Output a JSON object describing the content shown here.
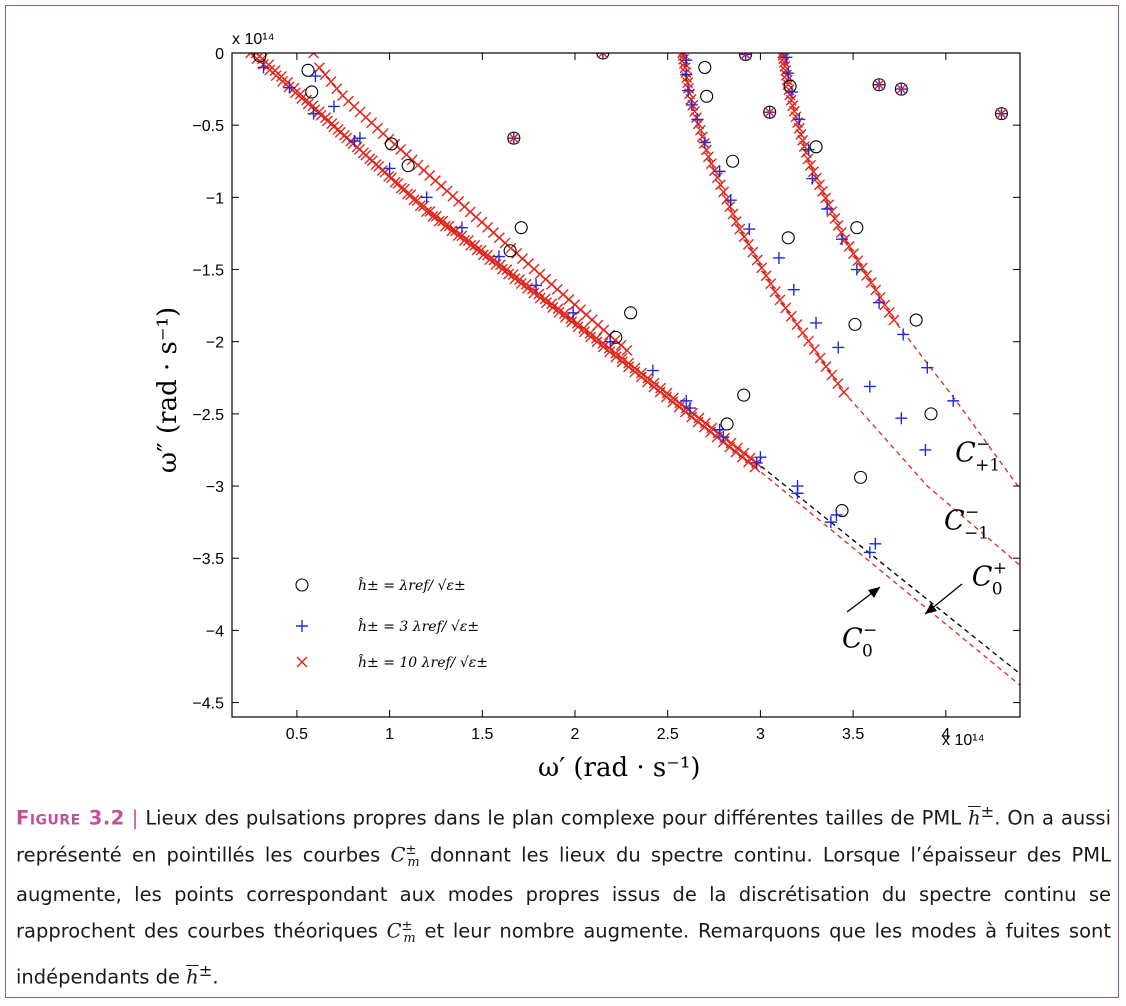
{
  "chart_data": {
    "type": "scatter",
    "xlabel": "ω′ (rad · s⁻¹)",
    "ylabel": "ω″ (rad · s⁻¹)",
    "x_multiplier": "x 10¹⁴",
    "y_multiplier": "x 10¹⁴",
    "xlim": [
      0.15,
      4.4
    ],
    "ylim": [
      -4.6,
      0
    ],
    "xticks": [
      0.5,
      1,
      1.5,
      2,
      2.5,
      3,
      3.5,
      4
    ],
    "xtick_labels": [
      "0.5",
      "1",
      "1.5",
      "2",
      "2.5",
      "3",
      "3.5",
      "4"
    ],
    "yticks": [
      0,
      -0.5,
      -1,
      -1.5,
      -2,
      -2.5,
      -3,
      -3.5,
      -4,
      -4.5
    ],
    "ytick_labels": [
      "0",
      "−0.5",
      "−1",
      "−1.5",
      "−2",
      "−2.5",
      "−3",
      "−3.5",
      "−4",
      "−4.5"
    ],
    "grid": false,
    "legend_position": "bottom-left",
    "series": [
      {
        "name": "ĥ± = λref/ √ε±",
        "marker": "circle",
        "color": "#000000",
        "points": [
          [
            0.3,
            -0.02
          ],
          [
            0.56,
            -0.12
          ],
          [
            0.58,
            -0.27
          ],
          [
            1.01,
            -0.63
          ],
          [
            1.1,
            -0.78
          ],
          [
            1.65,
            -1.37
          ],
          [
            1.71,
            -1.21
          ],
          [
            2.22,
            -1.97
          ],
          [
            2.3,
            -1.8
          ],
          [
            2.82,
            -2.57
          ],
          [
            2.91,
            -2.37
          ],
          [
            2.7,
            -0.1
          ],
          [
            2.71,
            -0.3
          ],
          [
            2.85,
            -0.75
          ],
          [
            3.15,
            -1.28
          ],
          [
            3.16,
            -0.23
          ],
          [
            3.3,
            -0.65
          ],
          [
            3.51,
            -1.88
          ],
          [
            3.52,
            -1.21
          ],
          [
            3.54,
            -2.94
          ],
          [
            3.44,
            -3.17
          ],
          [
            3.84,
            -1.85
          ],
          [
            3.92,
            -2.5
          ],
          [
            2.15,
            0
          ],
          [
            2.92,
            -0.01
          ],
          [
            1.67,
            -0.59
          ],
          [
            3.05,
            -0.41
          ],
          [
            3.64,
            -0.22
          ],
          [
            3.76,
            -0.25
          ],
          [
            4.3,
            -0.42
          ]
        ]
      },
      {
        "name": "ĥ± = 3 λref/ √ε±",
        "marker": "plus",
        "color": "#1f2bd6",
        "points": [
          [
            0.32,
            -0.1
          ],
          [
            0.46,
            -0.24
          ],
          [
            0.59,
            -0.42
          ],
          [
            0.7,
            -0.37
          ],
          [
            0.81,
            -0.61
          ],
          [
            0.84,
            -0.59
          ],
          [
            1.0,
            -0.8
          ],
          [
            1.2,
            -1.0
          ],
          [
            1.39,
            -1.21
          ],
          [
            1.59,
            -1.41
          ],
          [
            1.79,
            -1.61
          ],
          [
            1.99,
            -1.8
          ],
          [
            2.19,
            -2.0
          ],
          [
            2.42,
            -2.2
          ],
          [
            2.6,
            -2.41
          ],
          [
            2.62,
            -2.46
          ],
          [
            2.78,
            -2.61
          ],
          [
            2.8,
            -2.66
          ],
          [
            2.98,
            -2.84
          ],
          [
            3.0,
            -2.8
          ],
          [
            3.2,
            -3.0
          ],
          [
            3.2,
            -3.05
          ],
          [
            3.38,
            -3.25
          ],
          [
            3.41,
            -3.2
          ],
          [
            3.59,
            -3.46
          ],
          [
            3.62,
            -3.4
          ],
          [
            0.6,
            -0.16
          ],
          [
            2.6,
            -0.05
          ],
          [
            2.6,
            -0.15
          ],
          [
            2.61,
            -0.26
          ],
          [
            2.63,
            -0.36
          ],
          [
            2.66,
            -0.46
          ],
          [
            2.7,
            -0.62
          ],
          [
            2.78,
            -0.82
          ],
          [
            2.84,
            -1.02
          ],
          [
            2.94,
            -1.22
          ],
          [
            3.1,
            -1.42
          ],
          [
            3.18,
            -1.64
          ],
          [
            3.3,
            -1.87
          ],
          [
            3.42,
            -2.04
          ],
          [
            3.59,
            -2.31
          ],
          [
            3.14,
            -0.03
          ],
          [
            3.15,
            -0.14
          ],
          [
            3.17,
            -0.27
          ],
          [
            3.21,
            -0.46
          ],
          [
            3.26,
            -0.67
          ],
          [
            3.28,
            -0.87
          ],
          [
            3.36,
            -1.08
          ],
          [
            3.44,
            -1.29
          ],
          [
            3.52,
            -1.5
          ],
          [
            3.64,
            -1.73
          ],
          [
            3.77,
            -1.95
          ],
          [
            3.9,
            -2.18
          ],
          [
            4.04,
            -2.41
          ],
          [
            3.76,
            -2.53
          ],
          [
            3.89,
            -2.75
          ],
          [
            2.15,
            0
          ],
          [
            2.92,
            -0.01
          ],
          [
            1.67,
            -0.59
          ],
          [
            3.05,
            -0.41
          ],
          [
            3.64,
            -0.22
          ],
          [
            3.76,
            -0.25
          ],
          [
            4.3,
            -0.42
          ]
        ]
      },
      {
        "name": "ĥ± = 10 λref/ √ε±",
        "marker": "cross",
        "color": "#e0261c",
        "curves": [
          {
            "xrange": [
              0.25,
              2.98
            ],
            "points": 80
          },
          {
            "xrange": [
              0.28,
              2.97
            ],
            "points": 80
          },
          {
            "xrange": [
              0.59,
              2.28
            ],
            "points": 55
          },
          {
            "xrange": [
              2.58,
              3.45
            ],
            "points": 50
          },
          {
            "xrange": [
              3.12,
              3.72
            ],
            "points": 45
          }
        ],
        "points": [
          [
            2.15,
            0
          ],
          [
            2.92,
            -0.01
          ],
          [
            1.67,
            -0.59
          ],
          [
            3.05,
            -0.41
          ],
          [
            3.64,
            -0.22
          ],
          [
            3.76,
            -0.25
          ],
          [
            4.3,
            -0.42
          ]
        ]
      }
    ],
    "theoretical_curves": [
      {
        "name": "C₀⁻",
        "style": "dashed",
        "color": "#000000",
        "path": [
          [
            0.25,
            0
          ],
          [
            1.2,
            -1.08
          ],
          [
            2.0,
            -1.86
          ],
          [
            3.0,
            -2.86
          ],
          [
            4.4,
            -4.3
          ]
        ]
      },
      {
        "name": "C₀⁺",
        "style": "dashed",
        "color": "#e0261c",
        "path": [
          [
            0.28,
            0
          ],
          [
            1.2,
            -1.1
          ],
          [
            2.0,
            -1.88
          ],
          [
            3.0,
            -2.9
          ],
          [
            4.4,
            -4.38
          ]
        ]
      },
      {
        "name": "C₋₁⁻",
        "style": "dashed",
        "color": "#e0261c",
        "path": [
          [
            2.58,
            0
          ],
          [
            2.62,
            -0.3
          ],
          [
            2.72,
            -0.72
          ],
          [
            2.88,
            -1.2
          ],
          [
            3.1,
            -1.7
          ],
          [
            3.45,
            -2.35
          ],
          [
            3.9,
            -3.0
          ],
          [
            4.4,
            -3.55
          ]
        ]
      },
      {
        "name": "C₊₁⁻",
        "style": "dashed",
        "color": "#e0261c",
        "path": [
          [
            3.12,
            0
          ],
          [
            3.16,
            -0.3
          ],
          [
            3.26,
            -0.75
          ],
          [
            3.45,
            -1.28
          ],
          [
            3.72,
            -1.85
          ],
          [
            4.05,
            -2.4
          ],
          [
            4.4,
            -3.02
          ]
        ]
      }
    ],
    "curve_labels": [
      {
        "text": "C",
        "sub": "+1",
        "sup": "−",
        "at": [
          4.05,
          -2.83
        ]
      },
      {
        "text": "C",
        "sub": "−1",
        "sup": "−",
        "at": [
          3.99,
          -3.3
        ]
      },
      {
        "text": "C",
        "sub": "0",
        "sup": "+",
        "at": [
          4.14,
          -3.69
        ]
      },
      {
        "text": "C",
        "sub": "0",
        "sup": "−",
        "at": [
          3.44,
          -4.12
        ]
      }
    ]
  },
  "caption": {
    "label": "Figure 3.2",
    "separator": "|",
    "text_1": "Lieux des pulsations propres dans le plan complexe pour différentes tailles de PML",
    "h_symbol": "h",
    "pm": "±",
    "text_2": ". On a aussi représenté en pointillés les courbes",
    "c_symbol": "C",
    "c_sub": "m",
    "text_3": "donnant les lieux du spectre continu. Lorsque l’épaisseur des PML augmente, les points correspondant aux modes propres issus de la discrétisation du spectre continu se rapprochent des courbes théoriques",
    "text_4": "et leur nombre augmente. Remarquons que les modes à fuites sont indépendants de",
    "text_end": "."
  }
}
